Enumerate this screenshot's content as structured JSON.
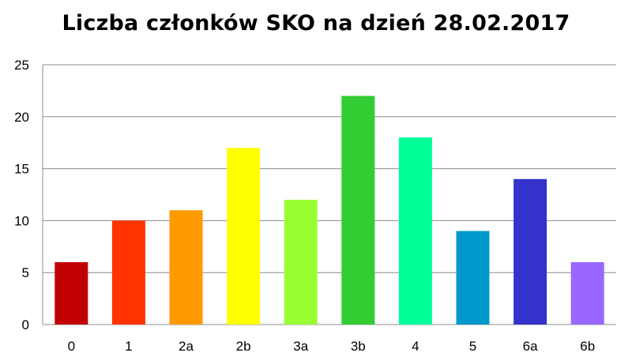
{
  "chart_data": {
    "type": "bar",
    "title": "Liczba członków SKO na dzień 28.02.2017",
    "xlabel": "",
    "ylabel": "",
    "categories": [
      "0",
      "1",
      "2a",
      "2b",
      "3a",
      "3b",
      "4",
      "5",
      "6a",
      "6b"
    ],
    "values": [
      6,
      10,
      11,
      17,
      12,
      22,
      18,
      9,
      14,
      6
    ],
    "colors": [
      "#c00000",
      "#ff3300",
      "#ff9900",
      "#ffff00",
      "#99ff33",
      "#33cc33",
      "#00ff99",
      "#0099cc",
      "#3333cc",
      "#9966ff"
    ],
    "ylim": [
      0,
      25
    ],
    "yticks": [
      "0",
      "5",
      "10",
      "15",
      "20",
      "25"
    ],
    "grid": true,
    "legend": "none"
  }
}
